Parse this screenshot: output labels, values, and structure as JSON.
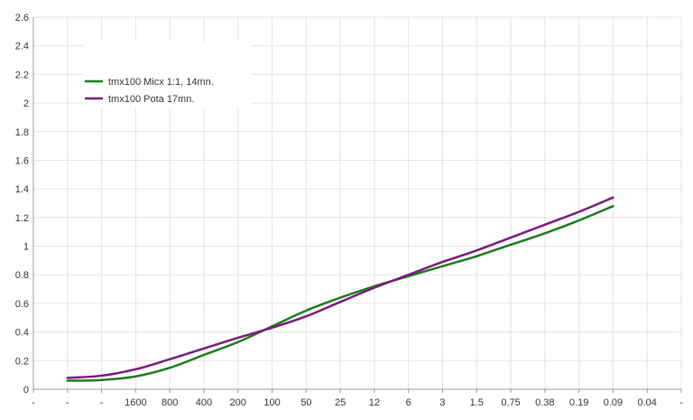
{
  "chart_data": {
    "type": "line",
    "title": "",
    "xlabel": "",
    "ylabel": "",
    "x_categories": [
      "-",
      "-",
      "-",
      "1600",
      "800",
      "400",
      "200",
      "100",
      "50",
      "25",
      "12",
      "6",
      "3",
      "1.5",
      "0.75",
      "0.38",
      "0.19",
      "0.09",
      "0.04",
      "-"
    ],
    "ylim": [
      0,
      2.6
    ],
    "y_ticks": [
      "0",
      "0.2",
      "0.4",
      "0.6",
      "0.8",
      "1",
      "1.2",
      "1.4",
      "1.6",
      "1.8",
      "2",
      "2.2",
      "2.4",
      "2.6"
    ],
    "grid": true,
    "legend_position": "top-left",
    "series": [
      {
        "name": "tmx100 Micx 1:1, 14mn.",
        "color": "#1e7a1e",
        "x_index": [
          1,
          2,
          3,
          4,
          5,
          6,
          7,
          8,
          9,
          10,
          11,
          12,
          13,
          14,
          15,
          16,
          17
        ],
        "values": [
          0.06,
          0.065,
          0.09,
          0.15,
          0.24,
          0.33,
          0.44,
          0.55,
          0.64,
          0.72,
          0.79,
          0.86,
          0.93,
          1.01,
          1.09,
          1.18,
          1.28
        ]
      },
      {
        "name": "tmx100 Pota 17mn.",
        "color": "#7a1a7a",
        "x_index": [
          1,
          2,
          3,
          4,
          5,
          6,
          7,
          8,
          9,
          10,
          11,
          12,
          13,
          14,
          15,
          16,
          17
        ],
        "values": [
          0.08,
          0.095,
          0.14,
          0.21,
          0.285,
          0.36,
          0.43,
          0.51,
          0.61,
          0.71,
          0.8,
          0.89,
          0.97,
          1.06,
          1.15,
          1.24,
          1.34
        ]
      }
    ]
  }
}
